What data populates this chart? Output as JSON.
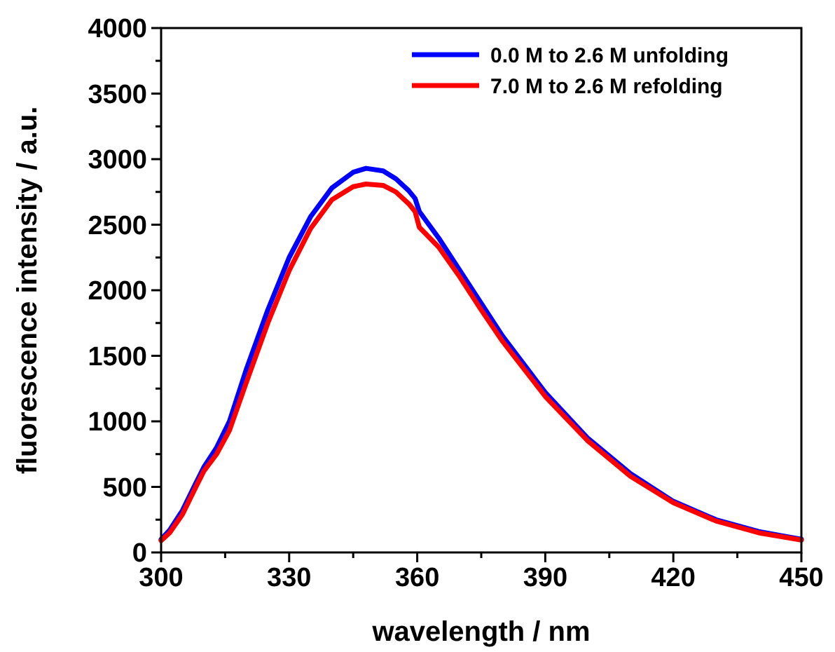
{
  "chart_data": {
    "type": "line",
    "xlabel": "wavelength / nm",
    "ylabel": "fluorescence intensity / a.u.",
    "xlim": [
      300,
      450
    ],
    "ylim": [
      0,
      4000
    ],
    "xticks": [
      300,
      {
        "value": 315,
        "label": null
      },
      330,
      {
        "value": 345,
        "label": null
      },
      360,
      {
        "value": 375,
        "label": null
      },
      390,
      {
        "value": 405,
        "label": null
      },
      420,
      {
        "value": 435,
        "label": null
      },
      450
    ],
    "yticks": [
      0,
      {
        "value": 250,
        "label": null
      },
      500,
      {
        "value": 750,
        "label": null
      },
      1000,
      {
        "value": 1250,
        "label": null
      },
      1500,
      {
        "value": 1750,
        "label": null
      },
      2000,
      {
        "value": 2250,
        "label": null
      },
      2500,
      {
        "value": 2750,
        "label": null
      },
      3000,
      {
        "value": 3250,
        "label": null
      },
      3500,
      {
        "value": 3750,
        "label": null
      },
      4000
    ],
    "grid": false,
    "legend": "top right",
    "marker": "none",
    "line_style": "solid",
    "series": [
      {
        "name": "0.0 M to 2.6 M unfolding",
        "color": "#0000ff",
        "x": [
          300,
          302,
          305,
          308,
          310,
          313,
          316,
          320,
          325,
          330,
          335,
          340,
          345,
          348,
          352,
          355,
          358,
          359.5,
          360.5,
          365,
          370,
          375,
          380,
          390,
          400,
          410,
          420,
          430,
          440,
          450
        ],
        "values": [
          100,
          170,
          320,
          520,
          650,
          800,
          1000,
          1400,
          1850,
          2250,
          2560,
          2780,
          2900,
          2930,
          2910,
          2850,
          2760,
          2700,
          2600,
          2400,
          2150,
          1900,
          1650,
          1220,
          870,
          600,
          390,
          250,
          160,
          100
        ]
      },
      {
        "name": "7.0 M to 2.6 M refolding",
        "color": "#ff0000",
        "x": [
          300,
          302,
          305,
          308,
          310,
          313,
          316,
          320,
          325,
          330,
          335,
          340,
          345,
          348,
          352,
          355,
          358,
          359.5,
          360.5,
          365,
          370,
          375,
          380,
          390,
          400,
          410,
          420,
          430,
          440,
          450
        ],
        "values": [
          90,
          150,
          290,
          490,
          620,
          750,
          930,
          1300,
          1750,
          2150,
          2470,
          2690,
          2790,
          2810,
          2800,
          2750,
          2660,
          2600,
          2480,
          2330,
          2100,
          1850,
          1610,
          1190,
          850,
          580,
          380,
          240,
          150,
          95
        ]
      }
    ]
  }
}
